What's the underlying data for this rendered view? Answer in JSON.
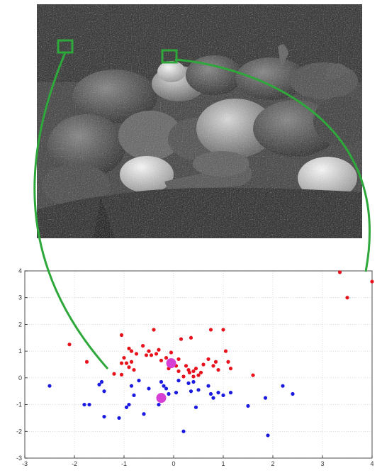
{
  "chart_data": {
    "type": "scatter",
    "title": "",
    "xlabel": "",
    "ylabel": "",
    "xlim": [
      -3,
      4
    ],
    "ylim": [
      -3,
      4
    ],
    "grid": true,
    "x_ticks": [
      -3,
      -2,
      -1,
      0,
      1,
      2,
      3,
      4
    ],
    "y_ticks": [
      -3,
      -2,
      -1,
      0,
      1,
      2,
      3,
      4
    ],
    "series": [
      {
        "color": "#e8121d",
        "marker": "small-dot",
        "points": [
          [
            -2.1,
            1.25
          ],
          [
            -1.75,
            0.6
          ],
          [
            -1.2,
            0.15
          ],
          [
            -1.05,
            0.12
          ],
          [
            -1.0,
            0.75
          ],
          [
            -1.05,
            0.55
          ],
          [
            -0.95,
            0.55
          ],
          [
            -0.9,
            0.4
          ],
          [
            -0.85,
            0.6
          ],
          [
            -0.8,
            0.3
          ],
          [
            -1.05,
            1.6
          ],
          [
            -0.9,
            1.1
          ],
          [
            -0.85,
            1.0
          ],
          [
            -0.75,
            0.9
          ],
          [
            -0.62,
            1.2
          ],
          [
            -0.55,
            0.85
          ],
          [
            -0.5,
            1.0
          ],
          [
            -0.45,
            0.85
          ],
          [
            -0.4,
            1.8
          ],
          [
            -0.35,
            0.9
          ],
          [
            -0.3,
            1.05
          ],
          [
            -0.25,
            0.65
          ],
          [
            -0.15,
            0.75
          ],
          [
            -0.05,
            0.95
          ],
          [
            0.05,
            0.45
          ],
          [
            0.1,
            0.7
          ],
          [
            0.15,
            1.45
          ],
          [
            0.2,
            0.05
          ],
          [
            0.25,
            0.45
          ],
          [
            0.3,
            0.3
          ],
          [
            0.32,
            0.2
          ],
          [
            0.35,
            1.5
          ],
          [
            0.4,
            0.05
          ],
          [
            0.4,
            0.25
          ],
          [
            0.45,
            0.35
          ],
          [
            0.5,
            0.1
          ],
          [
            0.55,
            0.2
          ],
          [
            0.6,
            0.5
          ],
          [
            0.7,
            0.7
          ],
          [
            0.75,
            1.8
          ],
          [
            0.8,
            0.45
          ],
          [
            0.85,
            0.6
          ],
          [
            0.9,
            0.3
          ],
          [
            1.0,
            1.8
          ],
          [
            1.05,
            1.0
          ],
          [
            1.1,
            0.6
          ],
          [
            1.15,
            0.35
          ],
          [
            1.6,
            0.1
          ],
          [
            0.1,
            0.25
          ],
          [
            -0.1,
            0.35
          ],
          [
            3.35,
            3.95
          ],
          [
            3.5,
            3.0
          ],
          [
            4.0,
            3.6
          ]
        ]
      },
      {
        "color": "#1a1ae0",
        "marker": "small-dot",
        "points": [
          [
            -2.5,
            -0.3
          ],
          [
            -1.8,
            -1.0
          ],
          [
            -1.7,
            -1.0
          ],
          [
            -1.5,
            -0.25
          ],
          [
            -1.45,
            -0.15
          ],
          [
            -1.4,
            -0.5
          ],
          [
            -1.4,
            -1.45
          ],
          [
            -1.1,
            -1.5
          ],
          [
            -0.95,
            -1.1
          ],
          [
            -0.9,
            -1.0
          ],
          [
            -0.85,
            -0.3
          ],
          [
            -0.8,
            -0.65
          ],
          [
            -0.7,
            -0.1
          ],
          [
            -0.6,
            -1.35
          ],
          [
            -0.5,
            -0.4
          ],
          [
            -0.3,
            -1.0
          ],
          [
            -0.25,
            -0.15
          ],
          [
            -0.2,
            -0.3
          ],
          [
            -0.15,
            -0.4
          ],
          [
            -0.1,
            -0.6
          ],
          [
            0.05,
            -0.55
          ],
          [
            0.1,
            -0.1
          ],
          [
            0.2,
            -2.0
          ],
          [
            0.3,
            -0.2
          ],
          [
            0.35,
            -0.5
          ],
          [
            0.4,
            -0.15
          ],
          [
            0.45,
            -1.1
          ],
          [
            0.5,
            -0.45
          ],
          [
            0.7,
            -0.3
          ],
          [
            0.75,
            -0.6
          ],
          [
            0.8,
            -0.75
          ],
          [
            0.9,
            -0.55
          ],
          [
            1.0,
            -0.65
          ],
          [
            1.15,
            -0.55
          ],
          [
            1.5,
            -1.05
          ],
          [
            1.85,
            -0.75
          ],
          [
            1.9,
            -2.15
          ],
          [
            2.2,
            -0.3
          ],
          [
            2.4,
            -0.6
          ]
        ]
      },
      {
        "color": "#d63fd3",
        "marker": "large-dot",
        "points": [
          [
            -0.05,
            0.55
          ],
          [
            -0.25,
            -0.75
          ]
        ]
      }
    ]
  },
  "image": {
    "content": "noisy grayscale photo of peppers and garlic",
    "highlight_color": "#2ea83a"
  }
}
